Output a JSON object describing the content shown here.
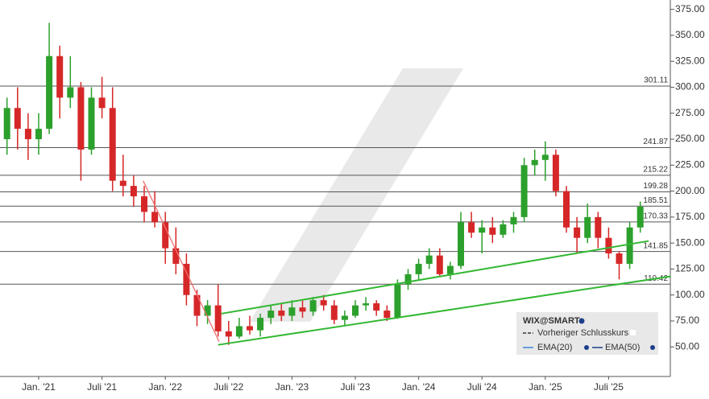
{
  "chart_data": {
    "type": "candlestick",
    "categories": [
      null,
      null,
      null,
      "Jan. '21",
      null,
      null,
      null,
      null,
      null,
      "Juli '21",
      null,
      null,
      null,
      null,
      null,
      "Jan. '22",
      null,
      null,
      null,
      null,
      null,
      "Juli '22",
      null,
      null,
      null,
      null,
      null,
      "Jan. '23",
      null,
      null,
      null,
      null,
      null,
      "Juli '23",
      null,
      null,
      null,
      null,
      null,
      "Jan. '24",
      null,
      null,
      null,
      null,
      null,
      "Juli '24",
      null,
      null,
      null,
      null,
      null,
      "Jan. '25",
      null,
      null,
      null,
      null,
      null,
      "Juli '25",
      null,
      null,
      null
    ],
    "open": [
      250,
      280,
      260,
      250,
      260,
      330,
      290,
      300,
      240,
      290,
      280,
      210,
      205,
      195,
      180,
      170,
      145,
      130,
      100,
      80,
      90,
      65,
      60,
      70,
      66,
      78,
      85,
      80,
      88,
      84,
      95,
      90,
      76,
      80,
      90,
      92,
      85,
      78,
      110,
      120,
      130,
      138,
      120,
      128,
      170,
      160,
      165,
      158,
      168,
      175,
      225,
      230,
      235,
      200,
      165,
      155,
      175,
      155,
      140,
      130,
      165
    ],
    "high": [
      290,
      300,
      275,
      275,
      362,
      340,
      330,
      305,
      300,
      310,
      300,
      235,
      215,
      205,
      200,
      180,
      165,
      140,
      105,
      95,
      110,
      75,
      78,
      80,
      82,
      90,
      92,
      95,
      95,
      98,
      100,
      95,
      85,
      95,
      98,
      95,
      90,
      115,
      125,
      135,
      145,
      145,
      132,
      180,
      180,
      172,
      175,
      172,
      180,
      232,
      240,
      248,
      240,
      205,
      175,
      188,
      180,
      165,
      142,
      170,
      190
    ],
    "low": [
      235,
      240,
      230,
      235,
      255,
      270,
      280,
      210,
      235,
      270,
      200,
      195,
      185,
      170,
      165,
      130,
      120,
      90,
      70,
      72,
      60,
      52,
      58,
      62,
      60,
      72,
      75,
      75,
      78,
      80,
      85,
      72,
      70,
      78,
      85,
      80,
      75,
      77,
      105,
      115,
      125,
      118,
      115,
      125,
      155,
      140,
      150,
      155,
      160,
      170,
      215,
      210,
      195,
      160,
      140,
      150,
      145,
      135,
      115,
      125,
      160
    ],
    "close": [
      280,
      260,
      250,
      260,
      330,
      290,
      300,
      240,
      290,
      280,
      210,
      205,
      195,
      180,
      170,
      145,
      130,
      100,
      80,
      90,
      65,
      60,
      70,
      66,
      78,
      85,
      80,
      88,
      84,
      95,
      90,
      76,
      80,
      90,
      92,
      85,
      78,
      110,
      120,
      130,
      138,
      120,
      128,
      170,
      160,
      165,
      158,
      168,
      175,
      225,
      230,
      235,
      200,
      165,
      155,
      175,
      155,
      140,
      130,
      165,
      185
    ],
    "up_color": "#2ca02c",
    "down_color": "#d62728",
    "ylim": [
      20,
      384
    ],
    "yticks": [
      {
        "value": 50,
        "label": "50.00"
      },
      {
        "value": 75,
        "label": "75.00"
      },
      {
        "value": 100,
        "label": "100.00"
      },
      {
        "value": 125,
        "label": "125.00"
      },
      {
        "value": 150,
        "label": "150.00"
      },
      {
        "value": 175,
        "label": "175.00"
      },
      {
        "value": 200,
        "label": "200.00"
      },
      {
        "value": 225,
        "label": "225.00"
      },
      {
        "value": 250,
        "label": "250.00"
      },
      {
        "value": 275,
        "label": "275.00"
      },
      {
        "value": 300,
        "label": "300.00"
      },
      {
        "value": 325,
        "label": "325.00"
      },
      {
        "value": 350,
        "label": "350.00"
      },
      {
        "value": 375,
        "label": "375.00"
      }
    ],
    "levels": [
      301.11,
      241.87,
      215.22,
      199.28,
      185.51,
      170.33,
      141.85,
      110.42
    ],
    "trendlines": [
      {
        "color": "#f07070",
        "x": [
          12.9,
          20.1
        ],
        "y": [
          210,
          55
        ]
      },
      {
        "color": "#33b833",
        "x": [
          20.3,
          60.8
        ],
        "y": [
          82,
          152
        ]
      },
      {
        "color": "#33b833",
        "x": [
          20,
          62.9
        ],
        "y": [
          52,
          118
        ]
      }
    ],
    "legend": {
      "title": "WIX@SMART",
      "entries": [
        {
          "name": "Vorheriger Schlusskurs",
          "color": "#333333"
        },
        {
          "name": "EMA(20)",
          "color": "#3a86d8"
        },
        {
          "name": "EMA(50)",
          "color": "#1c3f8a"
        }
      ]
    }
  }
}
